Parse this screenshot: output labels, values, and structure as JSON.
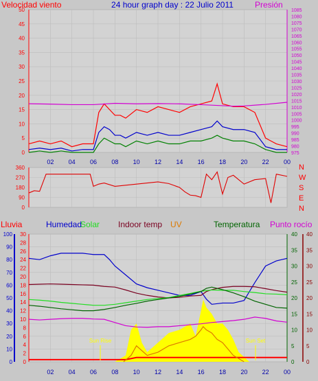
{
  "header": {
    "left_label": "Velocidad viento",
    "title": "24 hour graph day : 22 Julio 2011",
    "right_label": "Presión"
  },
  "bottom_header": {
    "rain": "Lluvia",
    "humidity": "Humedad",
    "solar": "Solar",
    "indoor": "Indoor temp",
    "uv": "UV",
    "temp": "Temperatura",
    "dew": "Punto rocío"
  },
  "sun_labels": {
    "rise": "Sun Rise",
    "set": "Sun Set"
  },
  "colors": {
    "wind": "#ff0000",
    "wind_avg": "#0000cc",
    "wind_low": "#008000",
    "pressure": "#d200d2",
    "direction": "#e00000",
    "humidity": "#0000cc",
    "solar": "#22dd22",
    "indoor": "#7a0020",
    "uv": "#dd7a00",
    "temp": "#006400",
    "dew": "#d200d2",
    "solar_fill": "#ffff00",
    "rain_bar": "#ff0000"
  },
  "chart_data": [
    {
      "type": "line",
      "name": "wind",
      "x_ticks": [
        "02",
        "04",
        "06",
        "08",
        "10",
        "12",
        "14",
        "16",
        "18",
        "20",
        "22",
        "00"
      ],
      "left_axis": {
        "label": "Velocidad viento",
        "ylim": [
          0,
          50
        ],
        "ticks": [
          0,
          5,
          10,
          15,
          20,
          25,
          30,
          35,
          40,
          45,
          50
        ]
      },
      "right_axis": {
        "label": "Presión",
        "ylim": [
          975,
          1085
        ],
        "ticks": [
          975,
          980,
          985,
          990,
          995,
          1000,
          1005,
          1010,
          1015,
          1020,
          1025,
          1030,
          1035,
          1040,
          1045,
          1050,
          1055,
          1060,
          1065,
          1070,
          1075,
          1080,
          1085
        ]
      },
      "series": [
        {
          "x": [
            0,
            1,
            2,
            3,
            4,
            5,
            6,
            6.5,
            7,
            7.5,
            8,
            8.5,
            9,
            10,
            11,
            12,
            13,
            14,
            15,
            16,
            17,
            17.5,
            18,
            19,
            20,
            21,
            22,
            22.5,
            23,
            24
          ],
          "values": [
            3,
            4,
            3,
            4,
            2,
            3,
            3,
            14,
            17,
            15,
            13,
            13,
            12,
            15,
            14,
            16,
            15,
            14,
            16,
            17,
            18,
            24,
            17,
            16,
            16,
            14,
            5,
            4,
            3,
            2
          ]
        },
        {
          "x": [
            0,
            1,
            2,
            3,
            4,
            5,
            6,
            6.5,
            7,
            7.5,
            8,
            8.5,
            9,
            10,
            11,
            12,
            13,
            14,
            15,
            16,
            17,
            17.5,
            18,
            19,
            20,
            21,
            22,
            22.5,
            23,
            24
          ],
          "values": [
            1,
            1.5,
            1,
            1.5,
            0.5,
            1,
            1,
            7,
            9,
            8,
            6,
            6,
            5,
            7,
            6,
            7,
            6,
            6,
            7,
            8,
            9,
            11,
            9,
            8,
            8,
            7,
            2,
            1.5,
            1,
            1
          ]
        },
        {
          "x": [
            0,
            1,
            2,
            3,
            4,
            5,
            6,
            6.5,
            7,
            7.5,
            8,
            8.5,
            9,
            10,
            11,
            12,
            13,
            14,
            15,
            16,
            17,
            17.5,
            18,
            19,
            20,
            21,
            22,
            22.5,
            23,
            24
          ],
          "values": [
            0,
            0.5,
            0,
            0.5,
            0,
            0,
            0,
            3,
            5,
            4,
            3,
            3,
            2,
            4,
            3,
            4,
            3,
            3,
            4,
            4,
            5,
            6,
            5,
            4,
            4,
            3,
            1,
            0.5,
            0,
            0
          ]
        },
        {
          "x": [
            0,
            2,
            4,
            6,
            8,
            10,
            12,
            14,
            16,
            18,
            19,
            20,
            22,
            24
          ],
          "values": [
            1012.5,
            1012.2,
            1011.8,
            1011.8,
            1012.8,
            1012.4,
            1012.6,
            1012.4,
            1011.8,
            1011,
            1010.6,
            1010.8,
            1012,
            1013.6
          ]
        }
      ]
    },
    {
      "type": "line",
      "name": "wind direction",
      "left_axis": {
        "ylim": [
          0,
          360
        ],
        "ticks": [
          0,
          90,
          180,
          270,
          360
        ]
      },
      "right_labels": [
        "N",
        "W",
        "S",
        "E",
        "N"
      ],
      "series": [
        {
          "x": [
            0,
            0.5,
            1,
            1.6,
            2.5,
            3,
            4,
            5,
            5.7,
            6,
            6.5,
            7,
            8,
            9,
            10,
            11,
            12,
            13,
            14,
            14.5,
            15,
            15.5,
            16,
            16.5,
            17,
            17.5,
            18,
            18.5,
            19,
            20,
            21,
            22,
            22.5,
            23,
            24
          ],
          "values": [
            130,
            150,
            145,
            300,
            300,
            300,
            300,
            300,
            300,
            190,
            210,
            220,
            190,
            200,
            210,
            220,
            230,
            215,
            180,
            140,
            110,
            105,
            90,
            300,
            250,
            320,
            120,
            270,
            290,
            210,
            250,
            260,
            40,
            300,
            280
          ]
        }
      ]
    },
    {
      "type": "line",
      "name": "humidity, temperature, solar",
      "left_axes": [
        {
          "label": "Humedad",
          "ylim": [
            0,
            100
          ],
          "ticks": [
            0,
            10,
            20,
            30,
            40,
            50,
            60,
            70,
            80,
            90,
            100
          ]
        },
        {
          "label": "Lluvia",
          "ylim": [
            0,
            30
          ],
          "ticks": [
            0,
            2,
            4,
            6,
            8,
            10,
            12,
            14,
            16,
            18,
            20,
            22,
            24,
            26,
            28,
            30
          ]
        }
      ],
      "right_axes": [
        {
          "label": "Temperatura",
          "ylim": [
            0,
            40
          ],
          "ticks": [
            0,
            5,
            10,
            15,
            20,
            25,
            30,
            35,
            40
          ]
        },
        {
          "label": "Punto rocío",
          "ylim": [
            0,
            40
          ],
          "ticks": [
            0,
            5,
            10,
            15,
            20,
            25,
            30,
            35,
            40
          ]
        }
      ],
      "series": [
        {
          "x": [
            0,
            1,
            2,
            3,
            4,
            5,
            6,
            7,
            7.5,
            8,
            9,
            10,
            11,
            12,
            13,
            14,
            15,
            16,
            16.5,
            17,
            18,
            19,
            20,
            21,
            22,
            23,
            24
          ],
          "values": [
            81,
            80,
            83,
            85,
            85,
            85,
            84,
            84,
            80,
            75,
            68,
            61,
            58,
            56,
            54,
            52,
            52,
            55,
            49,
            45,
            46,
            46,
            48,
            62,
            75,
            79,
            81
          ]
        },
        {
          "x": [
            0,
            1,
            2,
            3,
            4,
            5,
            6,
            7,
            8,
            9,
            10,
            11,
            12,
            13,
            14,
            15,
            16,
            16.5,
            17,
            18,
            19,
            20,
            21,
            22,
            23,
            24
          ],
          "values": [
            24.2,
            24.3,
            24.4,
            24.3,
            24.2,
            24.1,
            24,
            23.6,
            23.4,
            22.5,
            21.5,
            20.8,
            20.3,
            20,
            20.2,
            20.6,
            20.8,
            22,
            22.6,
            23.3,
            23.6,
            23.6,
            23.5,
            22.9,
            22.3,
            21.8
          ]
        },
        {
          "x": [
            0,
            1,
            2,
            3,
            4,
            5,
            6,
            7,
            8,
            9,
            10,
            11,
            12,
            13,
            14,
            15,
            16,
            17,
            18,
            19,
            20,
            21,
            22,
            23,
            24
          ],
          "values": [
            19.5,
            19.3,
            19,
            18.6,
            18.3,
            18,
            17.7,
            17.7,
            18,
            18.5,
            19,
            19.5,
            19.8,
            20.1,
            20.8,
            21.4,
            22.1,
            22.5,
            22.4,
            22.4,
            22,
            21.7,
            21.3,
            21.2,
            21
          ]
        },
        {
          "x": [
            0,
            1,
            2,
            3,
            4,
            5,
            6,
            7,
            8,
            9,
            10,
            11,
            12,
            13,
            14,
            15,
            16,
            16.5,
            17,
            18,
            19,
            20,
            21,
            22,
            23,
            24
          ],
          "values": [
            17.7,
            17.4,
            17,
            16.6,
            16.3,
            16,
            16,
            16.4,
            17,
            17.7,
            18.3,
            19,
            19.5,
            20,
            20.5,
            21.2,
            22,
            23,
            23.4,
            22.6,
            21.6,
            20.4,
            19,
            18,
            17,
            16.8
          ]
        },
        {
          "x": [
            0,
            1,
            2,
            3,
            4,
            5,
            6,
            7,
            8,
            9,
            10,
            11,
            12,
            13,
            14,
            15,
            16,
            17,
            18,
            19,
            20,
            21,
            22,
            23,
            24
          ],
          "values": [
            13.3,
            13.1,
            13.3,
            13.5,
            13.6,
            13.6,
            13.4,
            13.3,
            12.3,
            11.3,
            10.9,
            10.8,
            11,
            11,
            11.3,
            11.6,
            11.9,
            12.3,
            12.6,
            12.9,
            13.3,
            14,
            13.6,
            12.8,
            12.4
          ]
        },
        {
          "x": [
            6.8,
            8,
            9,
            9.5,
            10,
            10.5,
            11,
            12,
            13,
            14,
            15,
            15.5,
            16,
            16.2,
            16.5,
            17,
            17.5,
            18,
            18.5,
            19,
            19.5,
            20.5
          ],
          "values": [
            0,
            0,
            2,
            10,
            12,
            6,
            3,
            6,
            9,
            10,
            12,
            8,
            16,
            19.5,
            17,
            15,
            12,
            12,
            10,
            7,
            3,
            0
          ]
        },
        {
          "x": [
            0,
            9,
            10,
            12,
            14,
            16,
            17,
            18,
            20,
            24
          ],
          "values": [
            0.5,
            0.5,
            1,
            1,
            1,
            1,
            1,
            1,
            1,
            1
          ]
        },
        {
          "x": [
            8.8,
            9.5,
            10,
            11,
            12,
            13,
            14,
            15,
            15.5,
            16,
            16.2,
            16.5,
            17,
            17.5,
            18,
            18.5,
            19,
            19.5,
            20
          ],
          "values": [
            0,
            2,
            5,
            2,
            3,
            5,
            6,
            7,
            8,
            10,
            11,
            10,
            9,
            7,
            6,
            4,
            2,
            1,
            0
          ]
        }
      ]
    }
  ]
}
